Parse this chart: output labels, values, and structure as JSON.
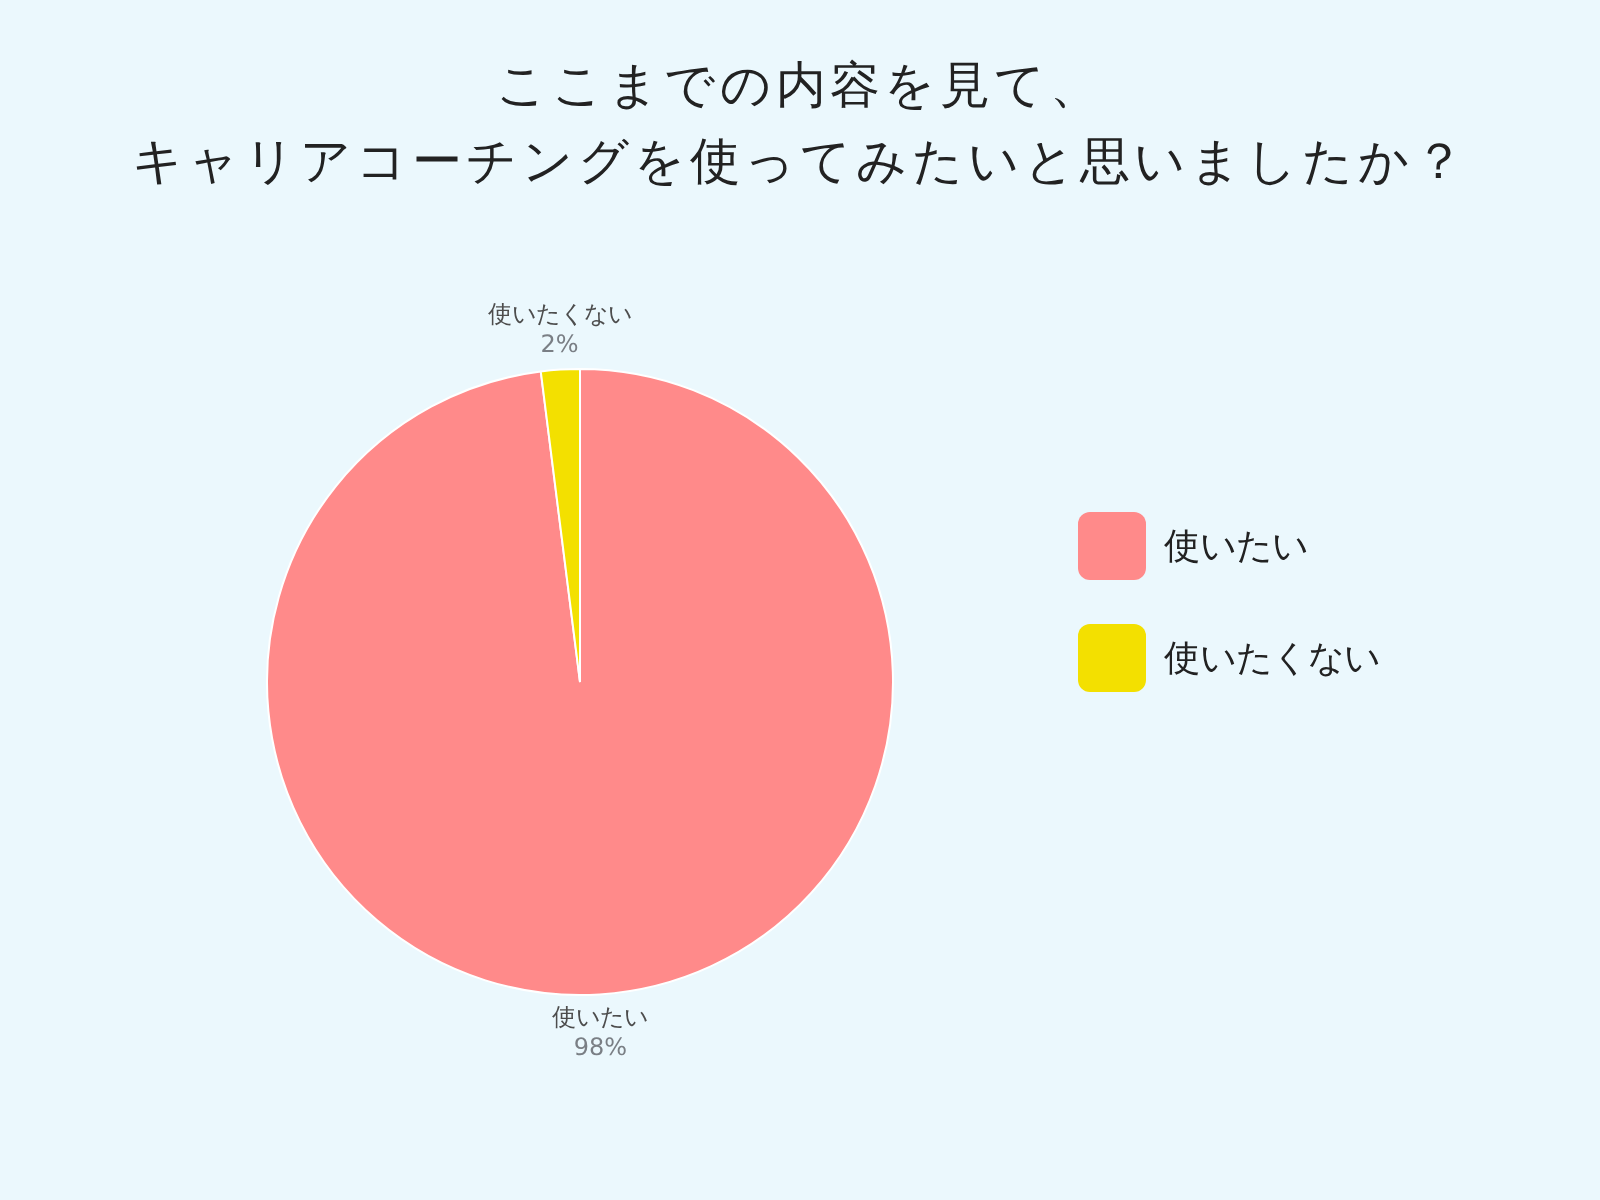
{
  "chart_data": {
    "type": "pie",
    "title": "ここまでの内容を見て、キャリアコーチングを使ってみたいと思いましたか？",
    "categories": [
      "使いたい",
      "使いたくない"
    ],
    "values": [
      98,
      2
    ],
    "colors": [
      "#ff8a8a",
      "#f3e000"
    ],
    "value_labels": [
      "98%",
      "2%"
    ],
    "legend": "right"
  }
}
